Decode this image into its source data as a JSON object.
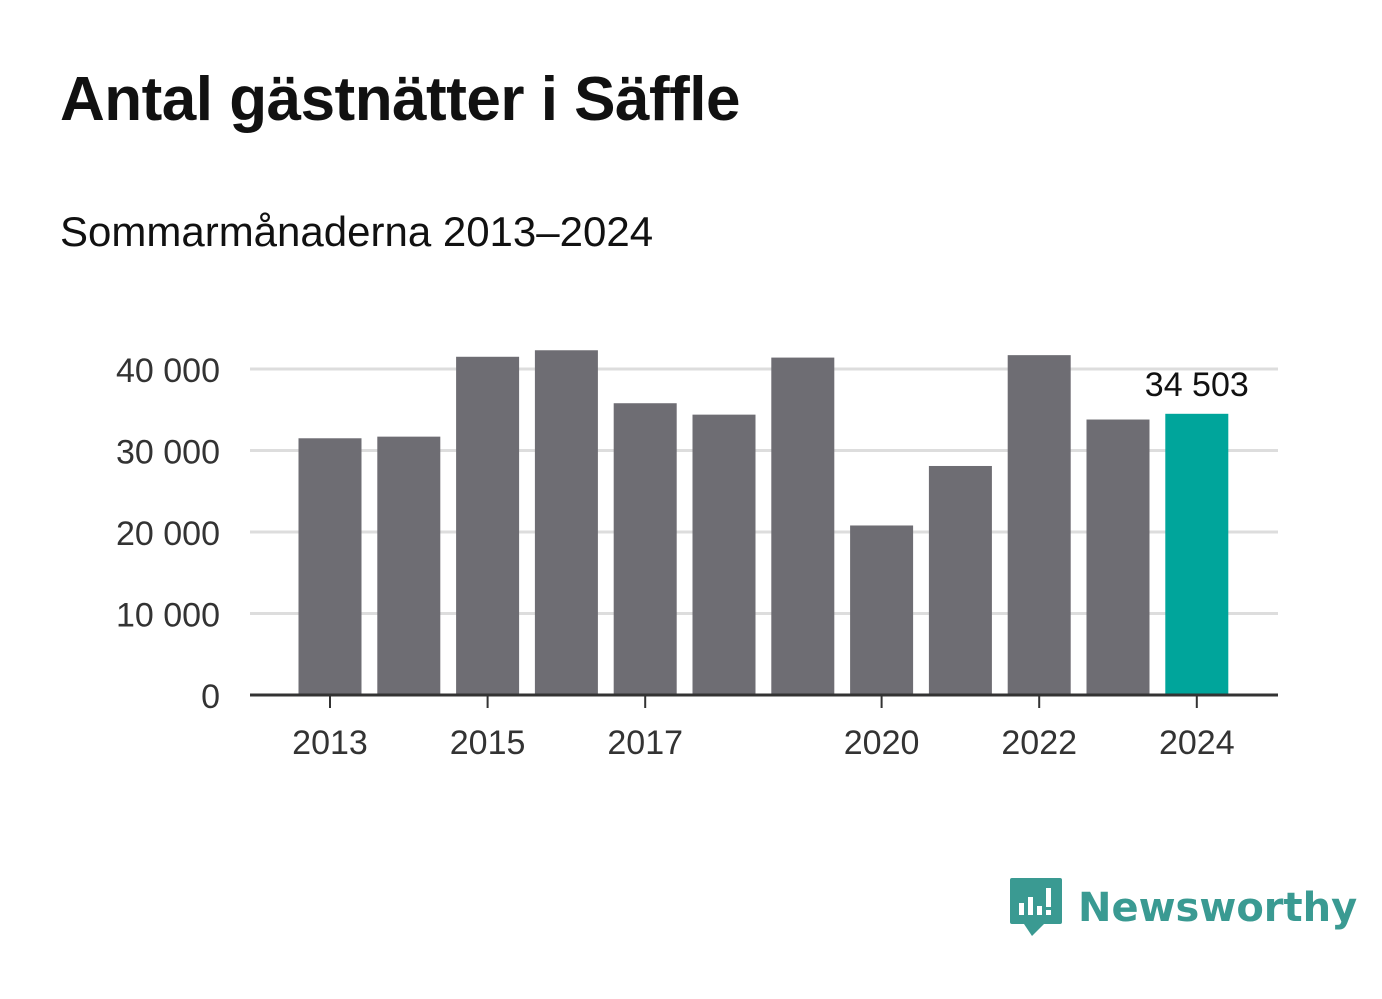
{
  "header": {
    "title": "Antal gästnätter i Säffle",
    "subtitle": "Sommarmånaderna 2013–2024"
  },
  "brand": {
    "name": "Newsworthy",
    "icon": "newsworthy-logo-icon",
    "color": "#3a9a92"
  },
  "chart_data": {
    "type": "bar",
    "categories": [
      "2013",
      "2014",
      "2015",
      "2016",
      "2017",
      "2018",
      "2019",
      "2020",
      "2021",
      "2022",
      "2023",
      "2024"
    ],
    "values": [
      31500,
      31700,
      41500,
      42300,
      35800,
      34400,
      41400,
      20800,
      28100,
      41700,
      33800,
      34503
    ],
    "x_tick_labels": [
      "2013",
      "2015",
      "2017",
      "2020",
      "2022",
      "2024"
    ],
    "y_ticks": [
      0,
      10000,
      20000,
      30000,
      40000
    ],
    "y_tick_labels": [
      "0",
      "10 000",
      "20 000",
      "30 000",
      "40 000"
    ],
    "ylim": [
      0,
      40000
    ],
    "grid": true,
    "colors": {
      "default": "#6e6d73",
      "highlight": "#00a59b",
      "grid": "#dddddd",
      "axis": "#333333"
    },
    "highlight_category": "2024",
    "annotation": {
      "category": "2024",
      "text": "34 503"
    }
  }
}
